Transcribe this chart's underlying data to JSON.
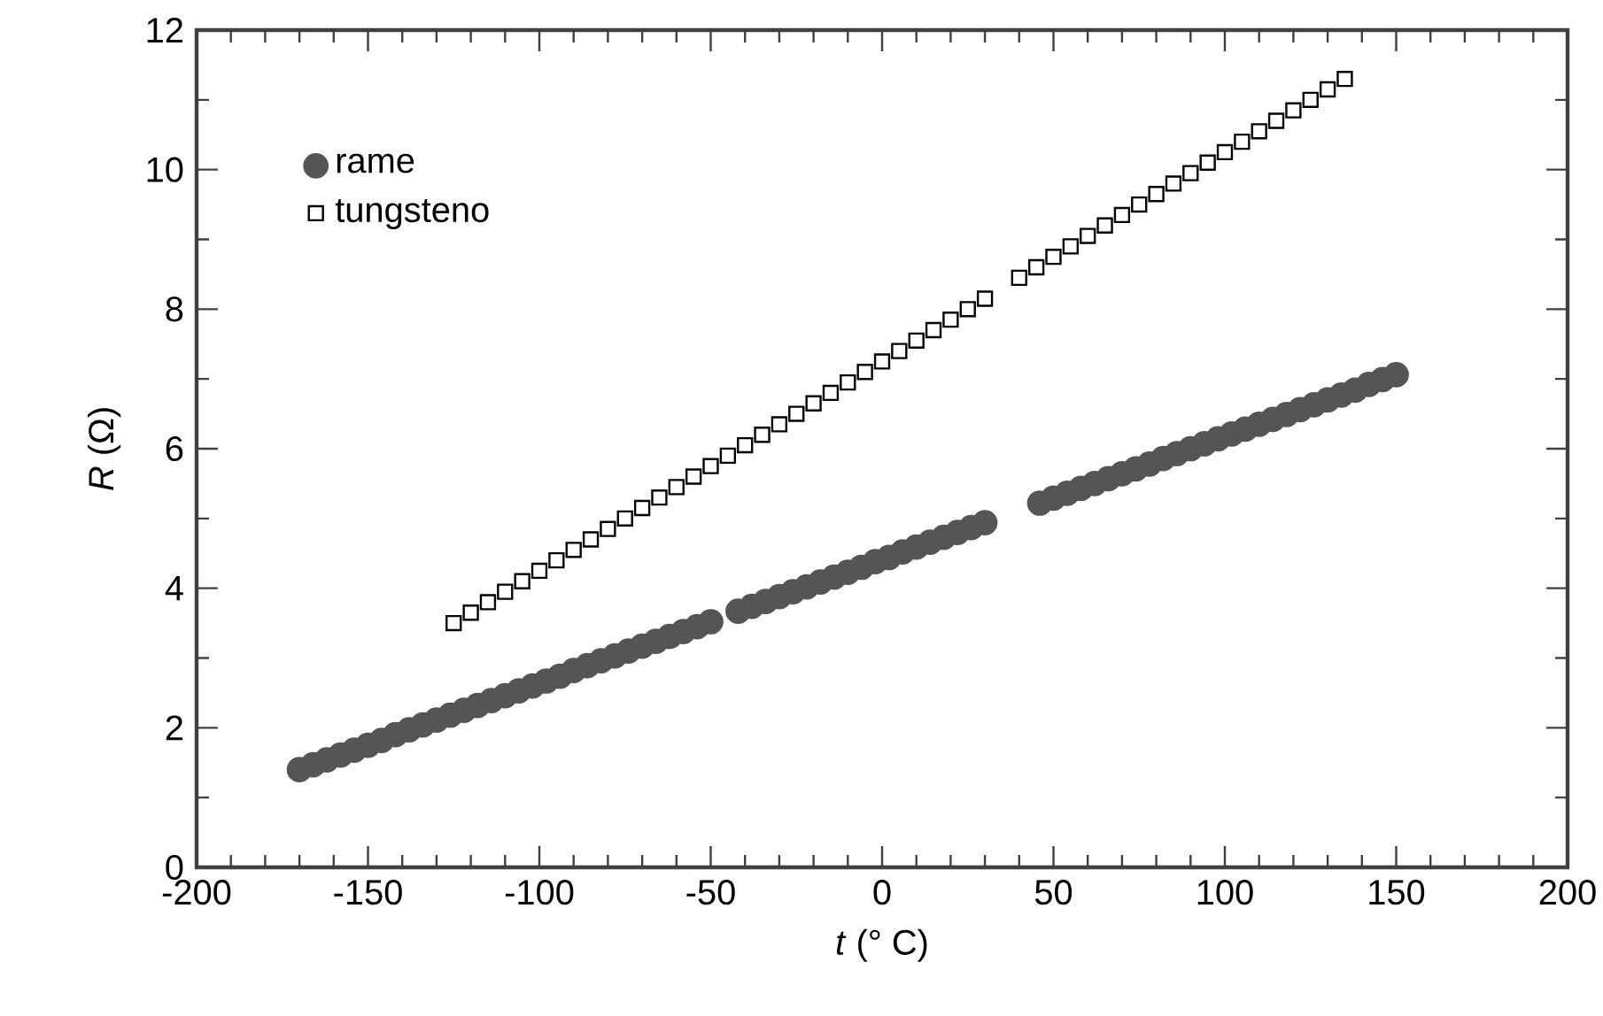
{
  "chart_data": {
    "type": "scatter",
    "xlabel": "*t* (° C)",
    "ylabel": "*R* (Ω)",
    "xlim": [
      -200,
      200
    ],
    "ylim": [
      0,
      12
    ],
    "xticks": [
      -200,
      -150,
      -100,
      -50,
      0,
      50,
      100,
      150,
      200
    ],
    "yticks": [
      0,
      2,
      4,
      6,
      8,
      10,
      12
    ],
    "legend": "top left",
    "grid": false,
    "series": [
      {
        "name": "rame",
        "color": "#555555",
        "marker": "circle",
        "x": [
          -170,
          -166,
          -162,
          -158,
          -154,
          -150,
          -146,
          -142,
          -138,
          -134,
          -130,
          -126,
          -122,
          -118,
          -114,
          -110,
          -106,
          -102,
          -98,
          -94,
          -90,
          -86,
          -82,
          -78,
          -74,
          -70,
          -66,
          -62,
          -58,
          -54,
          -50,
          -42,
          -38,
          -34,
          -30,
          -26,
          -22,
          -18,
          -14,
          -10,
          -6,
          -2,
          2,
          6,
          10,
          14,
          18,
          22,
          26,
          30,
          46,
          50,
          54,
          58,
          62,
          66,
          70,
          74,
          78,
          82,
          86,
          90,
          94,
          98,
          102,
          106,
          110,
          114,
          118,
          122,
          126,
          130,
          134,
          138,
          142,
          146,
          150
        ],
        "values": [
          1.4,
          1.47,
          1.54,
          1.61,
          1.68,
          1.75,
          1.82,
          1.9,
          1.97,
          2.04,
          2.11,
          2.18,
          2.25,
          2.32,
          2.39,
          2.46,
          2.53,
          2.6,
          2.67,
          2.74,
          2.82,
          2.89,
          2.96,
          3.03,
          3.1,
          3.17,
          3.24,
          3.31,
          3.38,
          3.45,
          3.52,
          3.67,
          3.74,
          3.81,
          3.88,
          3.95,
          4.02,
          4.09,
          4.16,
          4.23,
          4.3,
          4.38,
          4.44,
          4.52,
          4.59,
          4.66,
          4.73,
          4.8,
          4.87,
          4.94,
          5.22,
          5.29,
          5.36,
          5.43,
          5.5,
          5.57,
          5.64,
          5.71,
          5.78,
          5.86,
          5.93,
          6.0,
          6.07,
          6.14,
          6.21,
          6.28,
          6.35,
          6.42,
          6.49,
          6.56,
          6.63,
          6.7,
          6.77,
          6.84,
          6.92,
          6.99,
          7.06
        ]
      },
      {
        "name": "tungsteno",
        "color": "#000000",
        "marker": "square",
        "x": [
          -125,
          -120,
          -115,
          -110,
          -105,
          -100,
          -95,
          -90,
          -85,
          -80,
          -75,
          -70,
          -65,
          -60,
          -55,
          -50,
          -45,
          -40,
          -35,
          -30,
          -25,
          -20,
          -15,
          -10,
          -5,
          0,
          5,
          10,
          15,
          20,
          25,
          30,
          40,
          45,
          50,
          55,
          60,
          65,
          70,
          75,
          80,
          85,
          90,
          95,
          100,
          105,
          110,
          115,
          120,
          125,
          130,
          135
        ],
        "values": [
          3.5,
          3.65,
          3.8,
          3.95,
          4.1,
          4.25,
          4.4,
          4.55,
          4.7,
          4.85,
          5.0,
          5.15,
          5.3,
          5.45,
          5.6,
          5.75,
          5.9,
          6.05,
          6.2,
          6.35,
          6.5,
          6.65,
          6.8,
          6.95,
          7.1,
          7.25,
          7.4,
          7.55,
          7.7,
          7.85,
          8.0,
          8.15,
          8.45,
          8.6,
          8.75,
          8.9,
          9.05,
          9.2,
          9.35,
          9.5,
          9.65,
          9.8,
          9.95,
          10.1,
          10.25,
          10.4,
          10.55,
          10.7,
          10.85,
          11.0,
          11.15,
          11.3
        ]
      }
    ]
  }
}
